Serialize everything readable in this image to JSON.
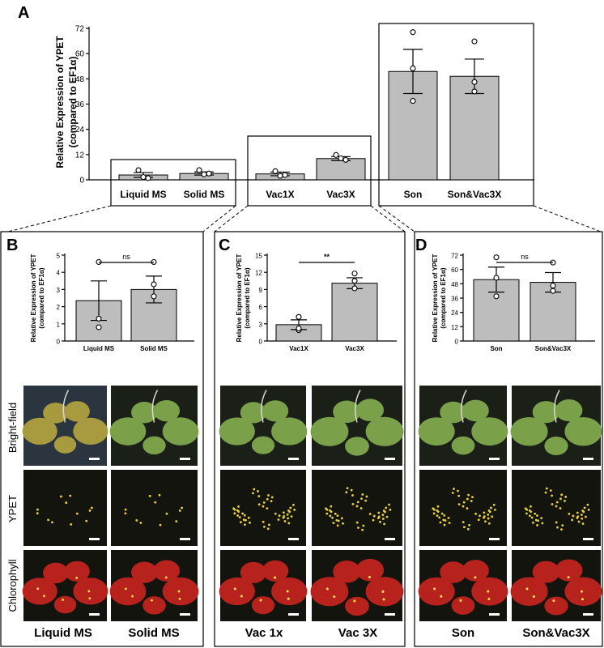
{
  "panel_letters": {
    "a": "A",
    "b": "B",
    "c": "C",
    "d": "D"
  },
  "ylabel_main_line1": "Relative Expression of YPET",
  "ylabel_main_line2": "(compared to EF1α)",
  "ylabel_sub_line1": "Relative Expression of YPET",
  "ylabel_sub_line2": "(compared to EF1α)",
  "row_labels": [
    "Bright-field",
    "YPET",
    "Chlorophyll"
  ],
  "photo_labels": {
    "b": [
      "Liquid MS",
      "Solid MS"
    ],
    "c": [
      "Vac 1x",
      "Vac 3X"
    ],
    "d": [
      "Son",
      "Son&Vac3X"
    ]
  },
  "colors": {
    "bar": "#bdbdbd",
    "brightfield_bg": "#1a1f17",
    "leaf_green": "#7aa04a",
    "ypet_bg": "#14140e",
    "ypet_dot": "#e8d23a",
    "chlorophyll": "#b8221c"
  },
  "chart_data": [
    {
      "panel": "A",
      "type": "bar",
      "categories": [
        "Liquid MS",
        "Solid MS",
        "Vac1X",
        "Vac3X",
        "Son",
        "Son&Vac3X"
      ],
      "values": [
        2.3,
        3.0,
        2.8,
        10.1,
        51.5,
        49.2
      ],
      "errors": [
        1.15,
        0.75,
        0.85,
        0.95,
        10.5,
        8.2
      ],
      "points": [
        [
          4.6,
          1.3,
          0.8
        ],
        [
          4.6,
          2.6,
          3.0
        ],
        [
          4.1,
          1.9,
          2.3
        ],
        [
          11.8,
          10.2,
          9.5
        ],
        [
          70.2,
          53.0,
          37.5
        ],
        [
          65.8,
          46.5,
          42.0
        ]
      ],
      "ylim": [
        0,
        72
      ],
      "yticks": [
        0,
        12,
        24,
        36,
        48,
        60,
        72
      ]
    },
    {
      "panel": "B",
      "type": "bar",
      "categories": [
        "Liquid MS",
        "Solid MS"
      ],
      "values": [
        2.35,
        3.0
      ],
      "errors": [
        1.15,
        0.78
      ],
      "points": [
        [
          4.6,
          1.3,
          0.8
        ],
        [
          4.6,
          2.6,
          3.3
        ]
      ],
      "ylim": [
        0,
        5
      ],
      "yticks": [
        0,
        1,
        2,
        3,
        4,
        5
      ],
      "significance": "ns"
    },
    {
      "panel": "C",
      "type": "bar",
      "categories": [
        "Vac1X",
        "Vac3X"
      ],
      "values": [
        2.85,
        10.1
      ],
      "errors": [
        0.85,
        0.95
      ],
      "points": [
        [
          4.2,
          1.9,
          2.2
        ],
        [
          11.8,
          10.5,
          9.2
        ]
      ],
      "ylim": [
        0,
        15
      ],
      "yticks": [
        0,
        3,
        6,
        9,
        12,
        15
      ],
      "significance": "**"
    },
    {
      "panel": "D",
      "type": "bar",
      "categories": [
        "Son",
        "Son&Vac3X"
      ],
      "values": [
        51.5,
        49.2
      ],
      "errors": [
        10.5,
        8.2
      ],
      "points": [
        [
          70.2,
          53.0,
          37.5
        ],
        [
          65.8,
          46.5,
          42.0
        ]
      ],
      "ylim": [
        0,
        72
      ],
      "yticks": [
        0,
        12,
        24,
        36,
        48,
        60,
        72
      ],
      "significance": "ns"
    }
  ]
}
